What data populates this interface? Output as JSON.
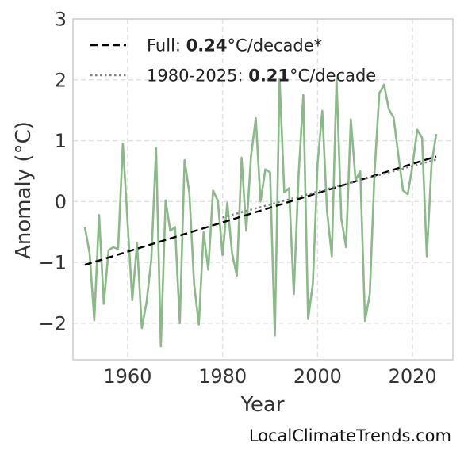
{
  "chart_data": {
    "type": "line",
    "xlabel": "Year",
    "ylabel": "Anomaly (°C)",
    "xlim": [
      1948.5,
      2028.5
    ],
    "ylim": [
      -2.6,
      3
    ],
    "x_ticks": [
      1960,
      1980,
      2000,
      2020
    ],
    "x_tick_labels": [
      "1960",
      "1980",
      "2000",
      "2020"
    ],
    "y_ticks": [
      -2,
      -1,
      0,
      1,
      2,
      3
    ],
    "y_tick_labels": [
      "−2",
      "−1",
      "0",
      "1",
      "2",
      "3"
    ],
    "grid": true,
    "legend_position": "top-left",
    "series": [
      {
        "color": "#8aba87",
        "style": "solid",
        "x": [
          1951,
          1952,
          1953,
          1954,
          1955,
          1956,
          1957,
          1958,
          1959,
          1960,
          1961,
          1962,
          1963,
          1964,
          1965,
          1966,
          1967,
          1968,
          1969,
          1970,
          1971,
          1972,
          1973,
          1974,
          1975,
          1976,
          1977,
          1978,
          1979,
          1980,
          1981,
          1982,
          1983,
          1984,
          1985,
          1986,
          1987,
          1988,
          1989,
          1990,
          1991,
          1992,
          1993,
          1994,
          1995,
          1996,
          1997,
          1998,
          1999,
          2000,
          2001,
          2002,
          2003,
          2004,
          2005,
          2006,
          2007,
          2008,
          2009,
          2010,
          2011,
          2012,
          2013,
          2014,
          2015,
          2016,
          2017,
          2018,
          2019,
          2020,
          2021,
          2022,
          2023,
          2024,
          2025
        ],
        "y": [
          -0.42,
          -0.85,
          -1.95,
          -0.22,
          -1.68,
          -0.8,
          -0.75,
          -0.78,
          0.95,
          -0.35,
          -1.62,
          -0.68,
          -2.08,
          -1.65,
          -0.95,
          0.88,
          -2.38,
          0.02,
          -0.48,
          -0.42,
          -2.0,
          0.68,
          0.15,
          -1.35,
          -2.02,
          -0.5,
          -1.12,
          0.18,
          0.02,
          -0.88,
          -0.02,
          -0.85,
          -1.22,
          0.72,
          -0.48,
          0.75,
          1.37,
          0.0,
          0.53,
          0.48,
          -2.2,
          2.02,
          0.15,
          0.22,
          -1.52,
          0.42,
          1.75,
          -1.93,
          -1.35,
          0.62,
          1.49,
          -0.15,
          -0.9,
          2.02,
          -0.28,
          -0.75,
          1.35,
          0.35,
          0.5,
          -1.96,
          -1.52,
          0.48,
          1.78,
          1.92,
          1.52,
          1.38,
          0.78,
          0.18,
          0.12,
          0.6,
          1.18,
          1.05,
          -0.9,
          0.62,
          1.11
        ]
      },
      {
        "name": "Full",
        "color": "#000000",
        "style": "dashed",
        "x": [
          1951,
          2025
        ],
        "y": [
          -1.04,
          0.74
        ]
      },
      {
        "name": "1980-2025",
        "color": "#808080",
        "style": "dotted",
        "x": [
          1980,
          2025
        ],
        "y": [
          -0.26,
          0.69
        ]
      }
    ],
    "legend": [
      {
        "prefix": "Full: ",
        "bold": "0.24",
        "suffix": "°C/decade*",
        "style": "dashed",
        "color": "#000000"
      },
      {
        "prefix": "1980-2025: ",
        "bold": "0.21",
        "suffix": "°C/decade",
        "style": "dotted",
        "color": "#808080"
      }
    ]
  },
  "footer": {
    "site": "LocalClimateTrends.com"
  }
}
